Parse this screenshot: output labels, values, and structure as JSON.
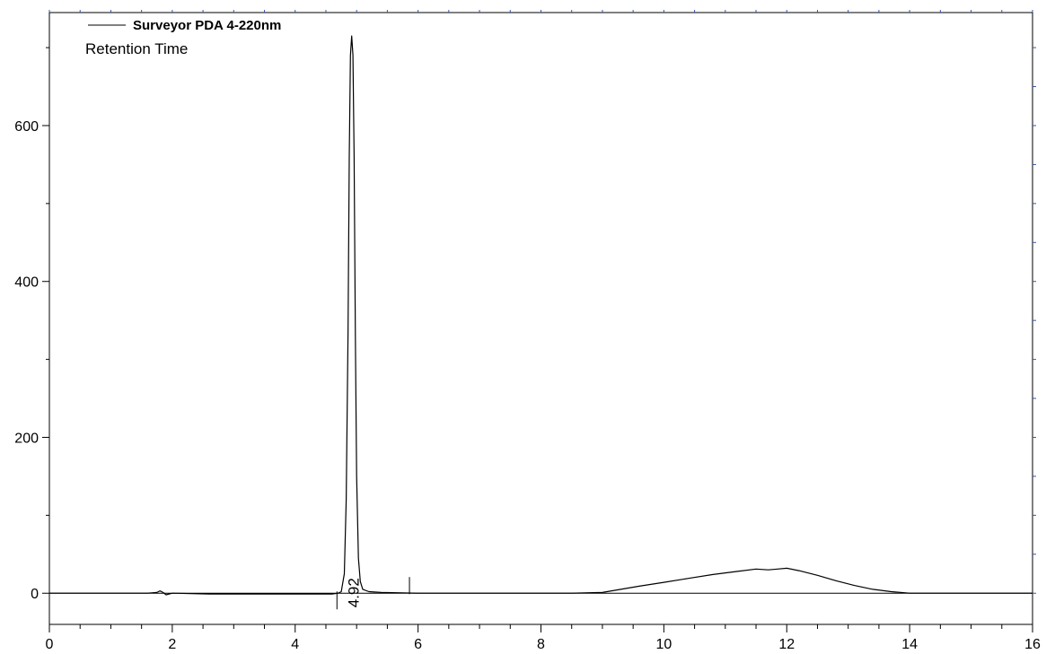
{
  "chart_data": {
    "type": "line",
    "legend": {
      "series_name": "Surveyor PDA 4-220nm",
      "subtitle": "Retention Time"
    },
    "xlim": [
      0,
      16
    ],
    "ylim": [
      -40,
      745
    ],
    "x_ticks": [
      0,
      2,
      4,
      6,
      8,
      10,
      12,
      14,
      16
    ],
    "y_ticks": [
      0,
      200,
      400,
      600
    ],
    "series": [
      {
        "name": "Surveyor PDA 4-220nm",
        "x": [
          0,
          1.6,
          1.75,
          1.8,
          1.85,
          1.9,
          2.0,
          2.6,
          4.6,
          4.7,
          4.75,
          4.8,
          4.83,
          4.86,
          4.88,
          4.9,
          4.92,
          4.94,
          4.96,
          4.98,
          5.0,
          5.03,
          5.06,
          5.1,
          5.2,
          5.4,
          6.0,
          8.5,
          9.0,
          9.3,
          9.6,
          10.0,
          10.4,
          10.8,
          11.2,
          11.5,
          11.7,
          11.85,
          12.0,
          12.2,
          12.5,
          12.8,
          13.1,
          13.4,
          13.7,
          14.0,
          14.5,
          15.0,
          16.0
        ],
        "y": [
          0,
          0,
          1,
          3,
          1,
          -2,
          0,
          -1,
          -1,
          0,
          2,
          25,
          120,
          330,
          560,
          690,
          715,
          690,
          560,
          330,
          150,
          45,
          15,
          5,
          2,
          1,
          0,
          0,
          1,
          5,
          9,
          14,
          19,
          24,
          28,
          31,
          30,
          31,
          32,
          29,
          23,
          16,
          10,
          5,
          2,
          0,
          0,
          0,
          0
        ]
      }
    ],
    "peaks": [
      {
        "retention_time": 4.92,
        "label": "4.92"
      }
    ],
    "markers_x": [
      4.68,
      5.86
    ],
    "grid": false
  }
}
